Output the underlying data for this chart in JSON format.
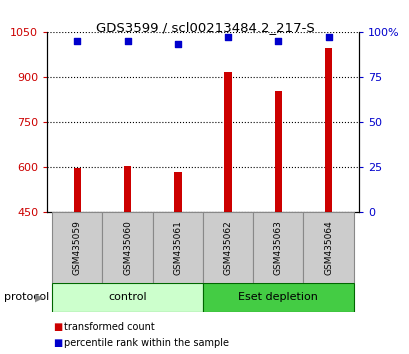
{
  "title": "GDS3599 / scl00213484.2_217-S",
  "categories": [
    "GSM435059",
    "GSM435060",
    "GSM435061",
    "GSM435062",
    "GSM435063",
    "GSM435064"
  ],
  "transformed_counts": [
    597,
    605,
    583,
    918,
    855,
    995
  ],
  "percentile_ranks": [
    95,
    95,
    93,
    97,
    95,
    97
  ],
  "ylim_left": [
    450,
    1050
  ],
  "ylim_right": [
    0,
    100
  ],
  "yticks_left": [
    450,
    600,
    750,
    900,
    1050
  ],
  "yticks_right": [
    0,
    25,
    50,
    75,
    100
  ],
  "ytick_labels_right": [
    "0",
    "25",
    "50",
    "75",
    "100%"
  ],
  "bar_color": "#cc0000",
  "dot_color": "#0000cc",
  "bar_width": 0.15,
  "dot_size": 18,
  "protocol_groups": [
    {
      "label": "control",
      "indices": [
        0,
        1,
        2
      ],
      "color": "#ccffcc"
    },
    {
      "label": "Eset depletion",
      "indices": [
        3,
        4,
        5
      ],
      "color": "#44cc44"
    }
  ],
  "protocol_label": "protocol",
  "legend_bar_label": "transformed count",
  "legend_dot_label": "percentile rank within the sample",
  "bg_color": "#ffffff",
  "plot_bg_color": "#ffffff",
  "grid_color": "#000000",
  "tick_label_color_left": "#cc0000",
  "tick_label_color_right": "#0000cc",
  "sample_box_color": "#cccccc",
  "sample_box_edge": "#888888",
  "proto_edge_color": "#006600"
}
